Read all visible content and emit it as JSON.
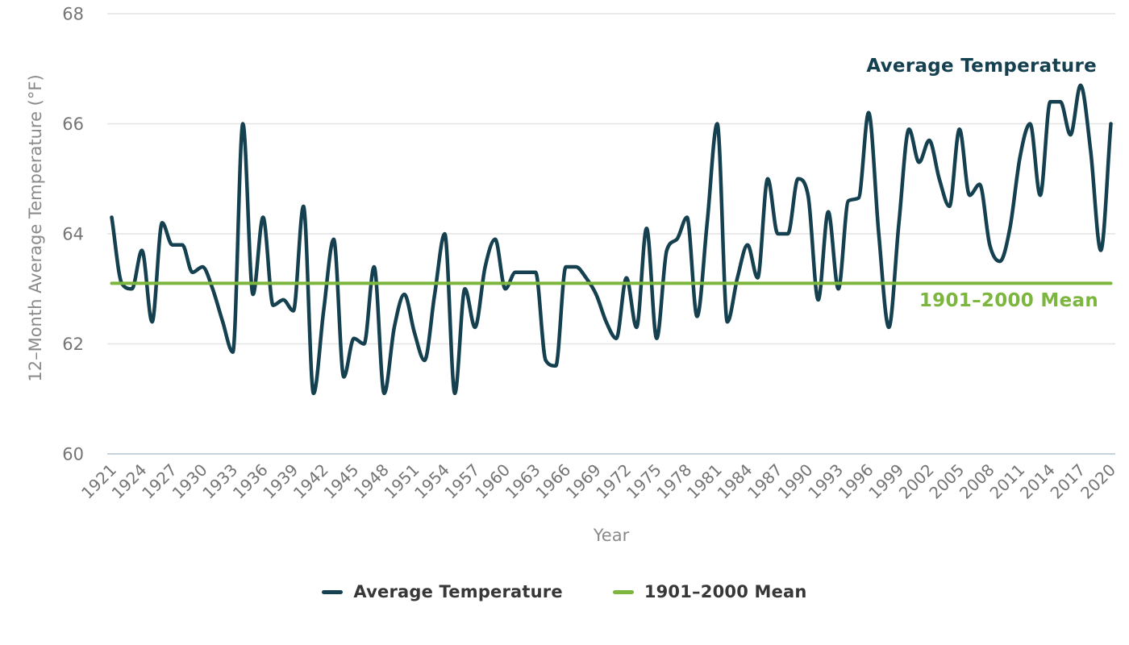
{
  "page": {
    "background": "#ffffff"
  },
  "chart_data": {
    "type": "line",
    "title_annotation": "Average Temperature",
    "mean_annotation": "1901–2000 Mean",
    "xlabel": "Year",
    "ylabel": "12–Month Average Temperature (°F)",
    "ylim": [
      60,
      68
    ],
    "y_ticks": [
      68,
      66,
      64,
      62,
      60
    ],
    "x_ticks": [
      1921,
      1924,
      1927,
      1930,
      1933,
      1936,
      1939,
      1942,
      1945,
      1948,
      1951,
      1954,
      1957,
      1960,
      1963,
      1966,
      1969,
      1972,
      1975,
      1978,
      1981,
      1984,
      1987,
      1990,
      1993,
      1996,
      1999,
      2002,
      2005,
      2008,
      2011,
      2014,
      2017,
      2020
    ],
    "grid": "horizontal",
    "legend_position": "bottom-center",
    "mean_value": 63.1,
    "series": [
      {
        "name": "Average Temperature",
        "color": "#14404f",
        "style": "smooth-line"
      },
      {
        "name": "1901–2000 Mean",
        "color": "#7cb63e",
        "style": "horizontal-line"
      }
    ],
    "x": [
      1921,
      1922,
      1923,
      1924,
      1925,
      1926,
      1927,
      1928,
      1929,
      1930,
      1931,
      1932,
      1933,
      1934,
      1935,
      1936,
      1937,
      1938,
      1939,
      1940,
      1941,
      1942,
      1943,
      1944,
      1945,
      1946,
      1947,
      1948,
      1949,
      1950,
      1951,
      1952,
      1953,
      1954,
      1955,
      1956,
      1957,
      1958,
      1959,
      1960,
      1961,
      1962,
      1963,
      1964,
      1965,
      1966,
      1967,
      1968,
      1969,
      1970,
      1971,
      1972,
      1973,
      1974,
      1975,
      1976,
      1977,
      1978,
      1979,
      1980,
      1981,
      1982,
      1983,
      1984,
      1985,
      1986,
      1987,
      1988,
      1989,
      1990,
      1991,
      1992,
      1993,
      1994,
      1995,
      1996,
      1997,
      1998,
      1999,
      2000,
      2001,
      2002,
      2003,
      2004,
      2005,
      2006,
      2007,
      2008,
      2009,
      2010,
      2011,
      2012,
      2013,
      2014,
      2015,
      2016,
      2017,
      2018,
      2019,
      2020
    ],
    "values": [
      64.3,
      63.1,
      63.0,
      63.7,
      62.4,
      64.2,
      63.8,
      63.8,
      63.3,
      63.4,
      63.0,
      62.4,
      61.85,
      66.0,
      62.9,
      64.3,
      62.7,
      62.8,
      62.6,
      64.5,
      61.1,
      62.6,
      63.9,
      61.4,
      62.1,
      62.0,
      63.4,
      61.1,
      62.3,
      62.9,
      62.2,
      61.7,
      62.9,
      64.0,
      61.1,
      63.0,
      62.3,
      63.4,
      63.9,
      63.0,
      63.3,
      63.3,
      63.3,
      61.7,
      61.6,
      63.4,
      63.4,
      63.2,
      62.9,
      62.4,
      62.1,
      63.2,
      62.3,
      64.1,
      62.1,
      63.7,
      63.9,
      64.3,
      62.5,
      64.2,
      66.0,
      62.4,
      63.2,
      63.8,
      63.2,
      65.0,
      64.0,
      64.0,
      65.0,
      64.7,
      62.8,
      64.4,
      63.0,
      64.6,
      64.65,
      66.2,
      64.0,
      62.3,
      64.2,
      65.9,
      65.3,
      65.7,
      65.0,
      64.5,
      65.9,
      64.7,
      64.9,
      63.8,
      63.5,
      64.1,
      65.4,
      66.0,
      64.7,
      66.4,
      66.4,
      65.8,
      66.7,
      65.5,
      63.7,
      66.0
    ]
  },
  "legend": {
    "items": [
      {
        "label": "Average Temperature",
        "color": "#14404f"
      },
      {
        "label": "1901–2000 Mean",
        "color": "#7cb63e"
      }
    ]
  },
  "style": {
    "grid_color": "#e4e4e4",
    "baseline_color": "#c7d3db",
    "tick_label_color": "#757575",
    "axis_title_color": "#8a8a8a",
    "legend_text_color": "#373737"
  }
}
